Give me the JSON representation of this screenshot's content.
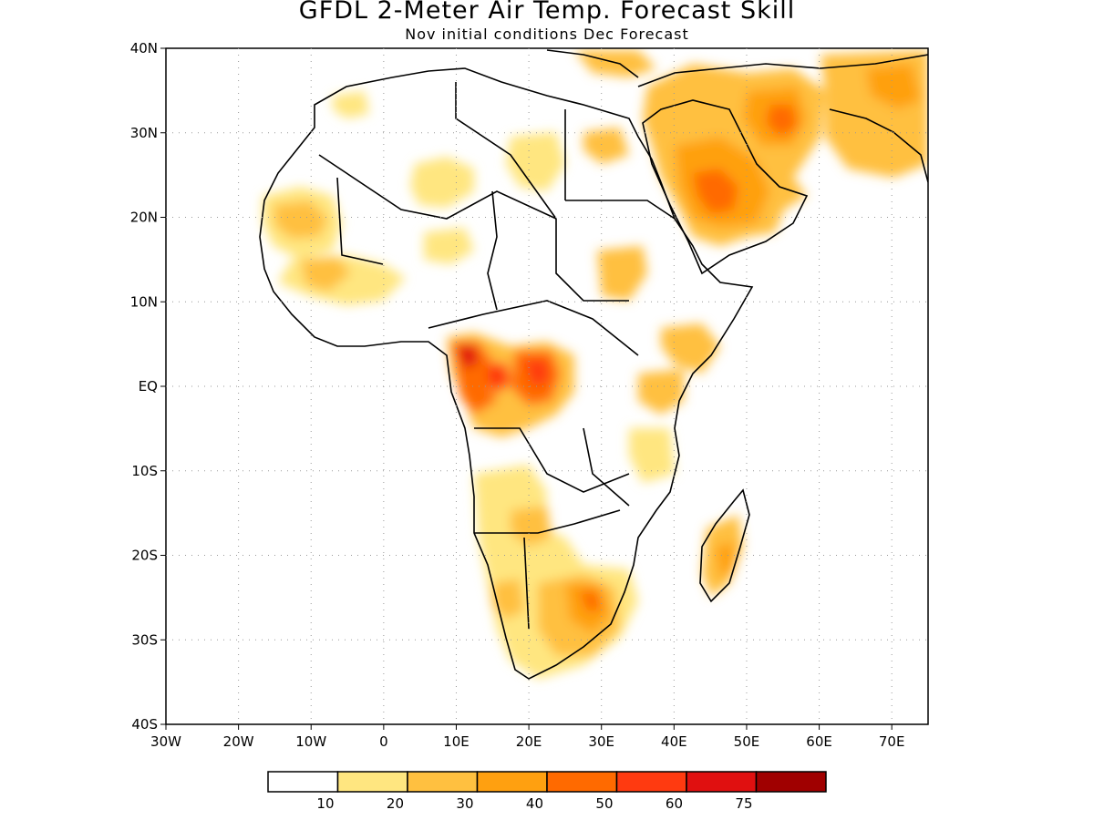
{
  "header": {
    "title": "GFDL 2-Meter Air Temp. Forecast Skill",
    "subtitle": "Nov initial conditions  Dec Forecast"
  },
  "axes": {
    "lat_labels": [
      "40N",
      "30N",
      "20N",
      "10N",
      "EQ",
      "10S",
      "20S",
      "30S",
      "40S"
    ],
    "lon_labels": [
      "30W",
      "20W",
      "10W",
      "0",
      "10E",
      "20E",
      "30E",
      "40E",
      "50E",
      "60E",
      "70E"
    ],
    "lat_range": [
      -40,
      40
    ],
    "lon_range": [
      -30,
      75
    ],
    "grid": "dotted"
  },
  "colorbar": {
    "labels": [
      "10",
      "20",
      "30",
      "40",
      "50",
      "60",
      "75"
    ],
    "colors": [
      "#ffffff",
      "#ffe680",
      "#ffc040",
      "#ffa010",
      "#ff6a00",
      "#ff3a10",
      "#e01010",
      "#a00000"
    ]
  },
  "map_data": {
    "region": "Africa and Middle East",
    "skill_regions": [
      {
        "lon": -12,
        "lat": 21,
        "level": 2
      },
      {
        "lon": 8,
        "lat": 25,
        "level": 1
      },
      {
        "lon": 22,
        "lat": 28,
        "level": 1
      },
      {
        "lon": 48,
        "lat": 22,
        "level": 3
      },
      {
        "lon": 55,
        "lat": 31,
        "level": 3
      },
      {
        "lon": 12,
        "lat": 3,
        "level": 5
      },
      {
        "lon": 21,
        "lat": 1,
        "level": 4
      },
      {
        "lon": 40,
        "lat": 5,
        "level": 2
      },
      {
        "lon": 28,
        "lat": -27,
        "level": 3
      },
      {
        "lon": 47,
        "lat": -20,
        "level": 2
      }
    ]
  }
}
